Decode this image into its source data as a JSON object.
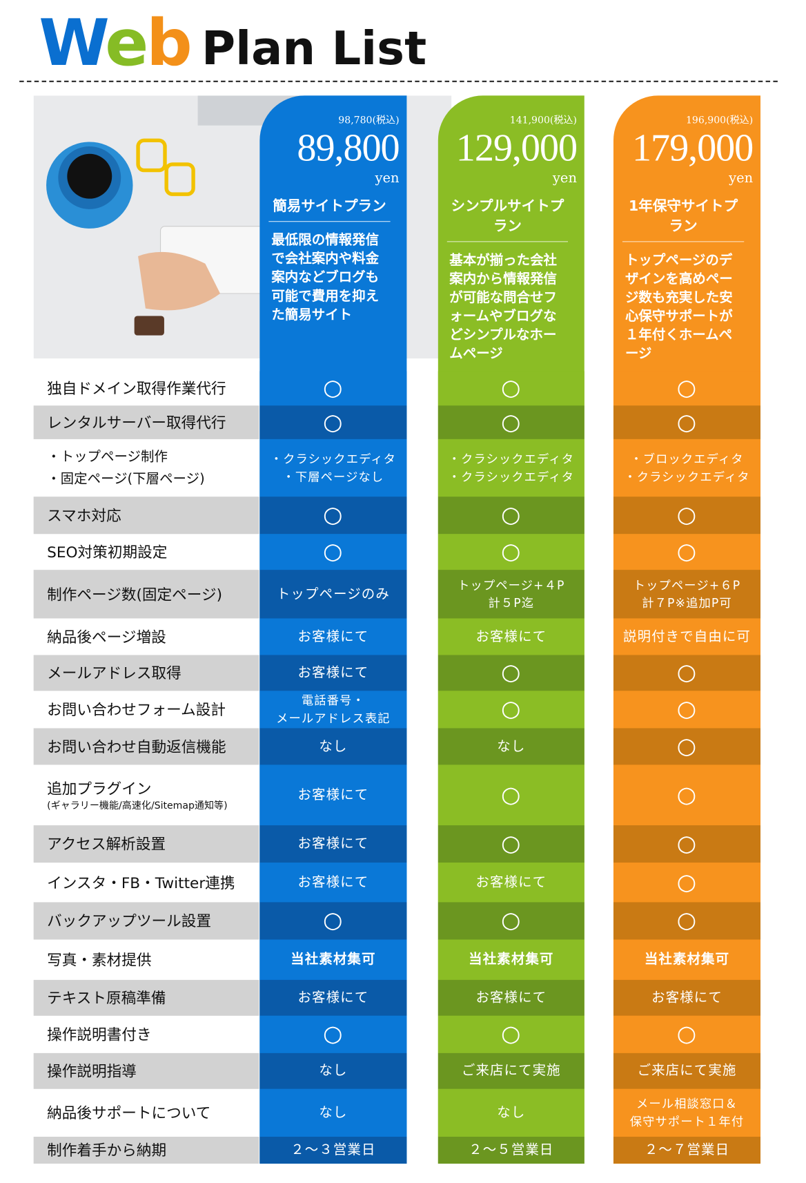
{
  "header": {
    "title_web": "Web",
    "title_rest": "Plan List"
  },
  "plans": [
    {
      "price_tax": "98,780(税込)",
      "price": "89,800",
      "unit": "yen",
      "name": "簡易サイトプラン",
      "description": "最低限の情報発信で会社案内や料金案内などブログも可能で費用を抑えた簡易サイト"
    },
    {
      "price_tax": "141,900(税込)",
      "price": "129,000",
      "unit": "yen",
      "name": "シンプルサイトプラン",
      "description": "基本が揃った会社案内から情報発信が可能な問合せフォームやブログなどシンプルなホームページ"
    },
    {
      "price_tax": "196,900(税込)",
      "price": "179,000",
      "unit": "yen",
      "name": "1年保守サイトプラン",
      "description": "トップページのデザインを高めページ数も充実した安心保守サポートが１年付くホームページ"
    }
  ],
  "rows": [
    {
      "label": [
        "独自ドメイン取得作業代行"
      ],
      "cells": [
        [
          "○"
        ],
        [
          "○"
        ],
        [
          "○"
        ]
      ]
    },
    {
      "label": [
        "レンタルサーバー取得代行"
      ],
      "cells": [
        [
          "○"
        ],
        [
          "○"
        ],
        [
          "○"
        ]
      ]
    },
    {
      "label": [
        "・トップページ制作",
        "・固定ページ(下層ページ)"
      ],
      "cells": [
        [
          "・クラシックエディタ",
          "・下層ページなし"
        ],
        [
          "・クラシックエディタ",
          "・クラシックエディタ"
        ],
        [
          "・ブロックエディタ",
          "・クラシックエディタ"
        ]
      ]
    },
    {
      "label": [
        "スマホ対応"
      ],
      "cells": [
        [
          "○"
        ],
        [
          "○"
        ],
        [
          "○"
        ]
      ]
    },
    {
      "label": [
        "SEO対策初期設定"
      ],
      "cells": [
        [
          "○"
        ],
        [
          "○"
        ],
        [
          "○"
        ]
      ]
    },
    {
      "label": [
        "制作ページ数(固定ページ)"
      ],
      "cells": [
        [
          "トップページのみ"
        ],
        [
          "トップページ+４P",
          "計５P迄"
        ],
        [
          "トップページ+６P",
          "計７P※追加P可"
        ]
      ]
    },
    {
      "label": [
        "納品後ページ増設"
      ],
      "cells": [
        [
          "お客様にて"
        ],
        [
          "お客様にて"
        ],
        [
          "説明付きで自由に可"
        ]
      ]
    },
    {
      "label": [
        "メールアドレス取得"
      ],
      "cells": [
        [
          "お客様にて"
        ],
        [
          "○"
        ],
        [
          "○"
        ]
      ]
    },
    {
      "label": [
        "お問い合わせフォーム設計"
      ],
      "cells": [
        [
          "電話番号・",
          "メールアドレス表記"
        ],
        [
          "○"
        ],
        [
          "○"
        ]
      ]
    },
    {
      "label": [
        "お問い合わせ自動返信機能"
      ],
      "cells": [
        [
          "なし"
        ],
        [
          "なし"
        ],
        [
          "○"
        ]
      ]
    },
    {
      "label": [
        "追加プラグイン",
        "(ギャラリー機能/高速化/Sitemap通知等)"
      ],
      "cells": [
        [
          "お客様にて"
        ],
        [
          "○"
        ],
        [
          "○"
        ]
      ]
    },
    {
      "label": [
        "アクセス解析設置"
      ],
      "cells": [
        [
          "お客様にて"
        ],
        [
          "○"
        ],
        [
          "○"
        ]
      ]
    },
    {
      "label": [
        "インスタ・FB・Twitter連携"
      ],
      "cells": [
        [
          "お客様にて"
        ],
        [
          "お客様にて"
        ],
        [
          "○"
        ]
      ]
    },
    {
      "label": [
        "バックアップツール設置"
      ],
      "cells": [
        [
          "○"
        ],
        [
          "○"
        ],
        [
          "○"
        ]
      ]
    },
    {
      "label": [
        "写真・素材提供"
      ],
      "cells": [
        [
          "当社素材集可"
        ],
        [
          "当社素材集可"
        ],
        [
          "当社素材集可"
        ]
      ]
    },
    {
      "label": [
        "テキスト原稿準備"
      ],
      "cells": [
        [
          "お客様にて"
        ],
        [
          "お客様にて"
        ],
        [
          "お客様にて"
        ]
      ]
    },
    {
      "label": [
        "操作説明書付き"
      ],
      "cells": [
        [
          "○"
        ],
        [
          "○"
        ],
        [
          "○"
        ]
      ]
    },
    {
      "label": [
        "操作説明指導"
      ],
      "cells": [
        [
          "なし"
        ],
        [
          "ご来店にて実施"
        ],
        [
          "ご来店にて実施"
        ]
      ]
    },
    {
      "label": [
        "納品後サポートについて"
      ],
      "cells": [
        [
          "なし"
        ],
        [
          "なし"
        ],
        [
          "メール相談窓口＆",
          "保守サポート１年付"
        ]
      ]
    },
    {
      "label": [
        "制作着手から納期"
      ],
      "cells": [
        [
          "２〜３営業日"
        ],
        [
          "２〜５営業日"
        ],
        [
          "２〜７営業日"
        ]
      ]
    }
  ]
}
